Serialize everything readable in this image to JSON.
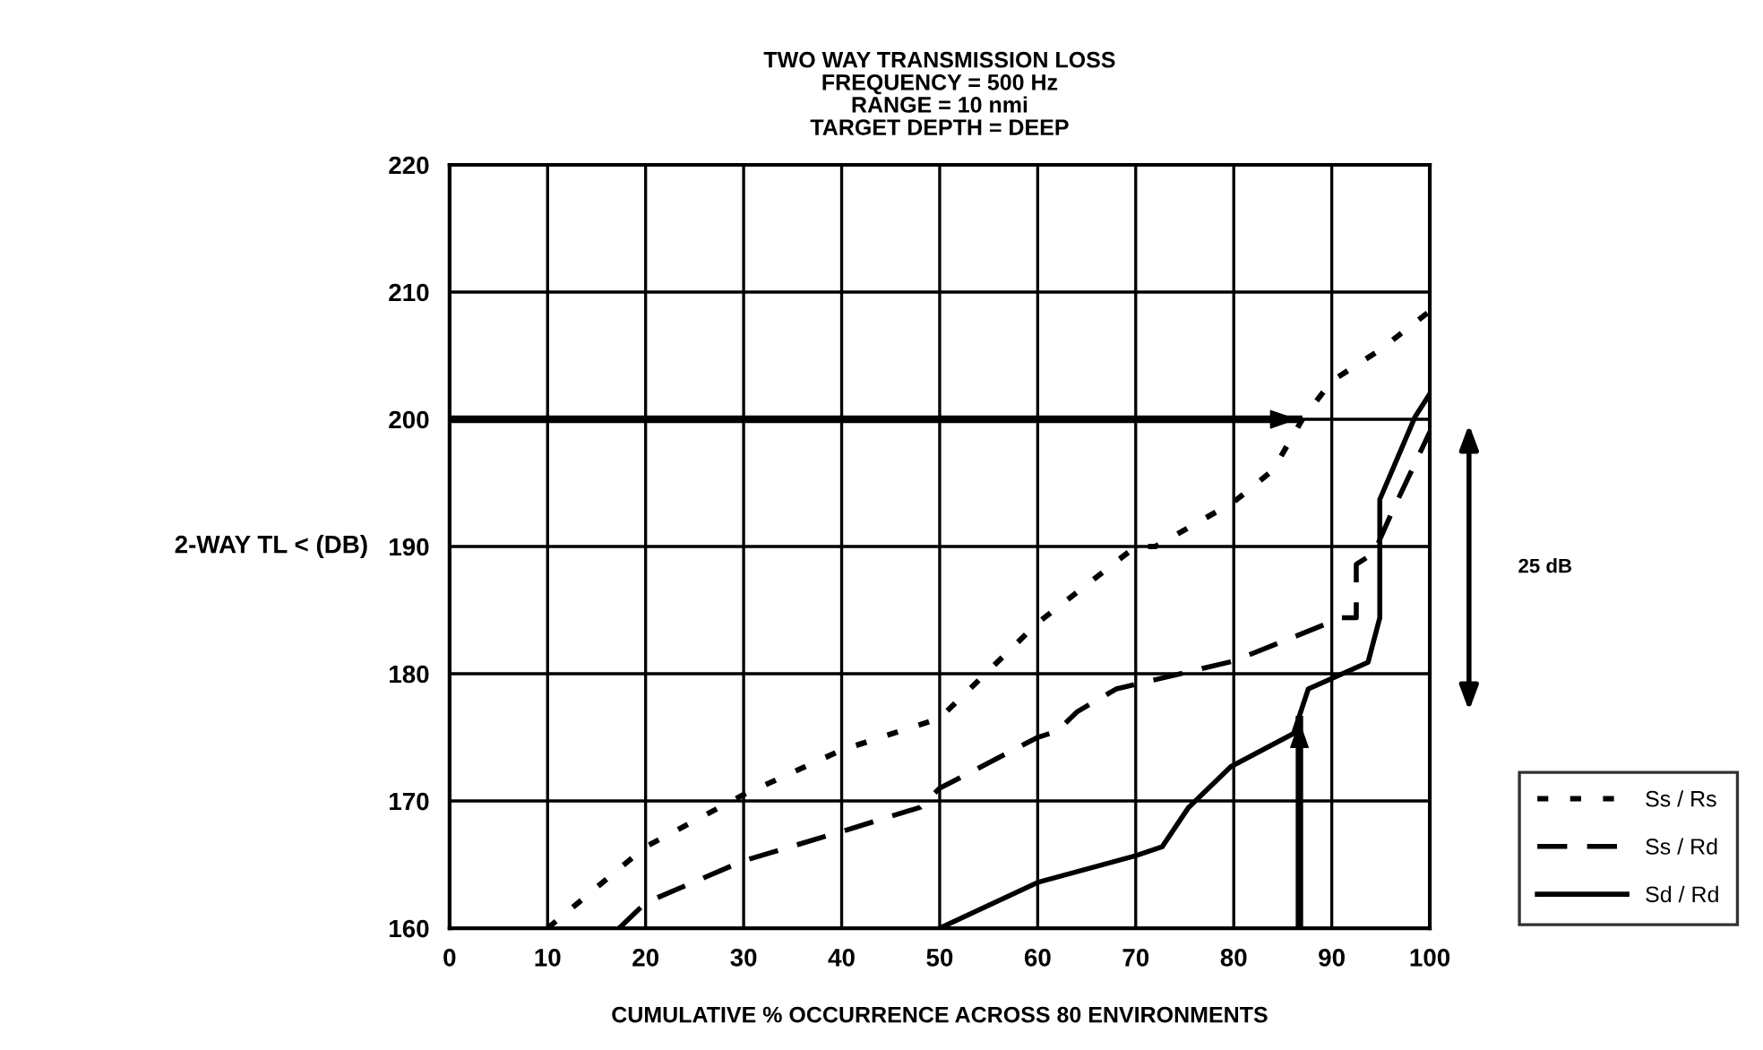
{
  "chart_data": {
    "type": "line",
    "title": "TWO WAY TRANSMISSION LOSS\nFREQUENCY = 500 Hz\nRANGE = 10 nmi\nTARGET DEPTH = DEEP",
    "xlabel": "CUMULATIVE % OCCURRENCE ACROSS 80 ENVIRONMENTS",
    "ylabel": "2-WAY TL < (DB)",
    "series": [
      {
        "name": "Ss / Rs",
        "color": "#000000",
        "line_style": "dotted",
        "x": [
          10,
          20,
          30,
          40,
          50,
          60,
          70,
          72,
          80,
          84,
          87,
          90,
          95,
          100
        ],
        "values": [
          160,
          166.4,
          170.5,
          174,
          176.5,
          184,
          190,
          190,
          193.5,
          196,
          200,
          203,
          205.5,
          208.5
        ]
      },
      {
        "name": "Ss / Rd",
        "color": "#000000",
        "line_style": "dashed",
        "x": [
          17.3,
          20,
          30,
          40,
          48,
          50,
          60,
          62,
          64,
          68,
          80,
          91,
          92.5,
          92.5,
          94.3,
          96.2,
          100
        ],
        "values": [
          160,
          162,
          165.3,
          167.6,
          169.5,
          171,
          175,
          175.5,
          177,
          178.8,
          181,
          184.4,
          184.4,
          188.6,
          189.5,
          192.8,
          199
        ]
      },
      {
        "name": "Sd / Rd",
        "color": "#000000",
        "line_style": "solid",
        "x": [
          50,
          60,
          70,
          72.7,
          75.4,
          79.7,
          86.1,
          87.6,
          93.7,
          94.9,
          94.9,
          98.5,
          100
        ],
        "values": [
          160,
          163.6,
          165.7,
          166.4,
          169.5,
          172.7,
          175.3,
          178.8,
          180.9,
          184.4,
          193.7,
          200.2,
          202
        ]
      }
    ],
    "ref_lines": [
      {
        "axis": "y",
        "value": 200,
        "label": null
      },
      {
        "axis": "x",
        "value": 86.7,
        "label": null
      }
    ],
    "annotations": [
      "25 dB"
    ],
    "xlim": [
      0,
      100
    ],
    "ylim": [
      160,
      220
    ],
    "xticks": [
      0,
      10,
      20,
      30,
      40,
      50,
      60,
      70,
      80,
      90,
      100
    ],
    "yticks": [
      160,
      170,
      180,
      190,
      200,
      210,
      220
    ],
    "grid": true,
    "legend": "bottom right"
  }
}
